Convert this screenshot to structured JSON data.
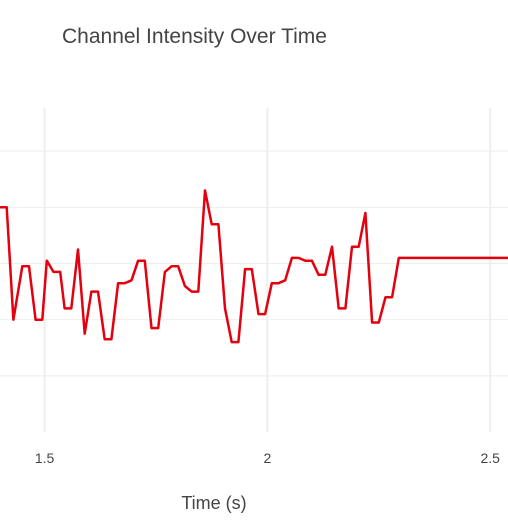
{
  "chart_data": {
    "type": "line",
    "title": "Channel Intensity Over Time",
    "xlabel": "Time (s)",
    "ylabel": "",
    "xlim": [
      1.4,
      2.54
    ],
    "ylim": [
      -3,
      3
    ],
    "x_ticks": [
      {
        "value": 1.5,
        "label": "1.5"
      },
      {
        "value": 2,
        "label": "2"
      },
      {
        "value": 2.5,
        "label": "2.5"
      }
    ],
    "y_gridlines": [
      -2,
      -1,
      0,
      1,
      2
    ],
    "x_gridlines": [
      1.5,
      2,
      2.5
    ],
    "grid": true,
    "legend": "none",
    "series": [
      {
        "color": "#e3000f",
        "x": [
          1.4,
          1.415,
          1.43,
          1.45,
          1.465,
          1.48,
          1.495,
          1.505,
          1.52,
          1.535,
          1.545,
          1.56,
          1.575,
          1.59,
          1.605,
          1.62,
          1.635,
          1.65,
          1.665,
          1.68,
          1.695,
          1.71,
          1.725,
          1.74,
          1.755,
          1.77,
          1.785,
          1.8,
          1.815,
          1.83,
          1.845,
          1.86,
          1.875,
          1.89,
          1.905,
          1.92,
          1.935,
          1.95,
          1.965,
          1.98,
          1.995,
          2.01,
          2.025,
          2.04,
          2.055,
          2.07,
          2.085,
          2.1,
          2.115,
          2.13,
          2.145,
          2.16,
          2.175,
          2.19,
          2.205,
          2.22,
          2.235,
          2.25,
          2.265,
          2.28,
          2.295,
          2.31,
          2.325,
          2.34,
          2.355,
          2.37,
          2.385,
          2.4,
          2.415,
          2.43,
          2.445,
          2.46,
          2.475,
          2.49,
          2.505,
          2.52,
          2.54
        ],
        "y": [
          1.0,
          1.0,
          -1.0,
          -0.05,
          -0.05,
          -1.0,
          -1.0,
          0.05,
          -0.15,
          -0.15,
          -0.8,
          -0.8,
          0.25,
          -1.25,
          -0.5,
          -0.5,
          -1.35,
          -1.35,
          -0.35,
          -0.35,
          -0.3,
          0.05,
          0.05,
          -1.15,
          -1.15,
          -0.15,
          -0.05,
          -0.05,
          -0.4,
          -0.5,
          -0.5,
          1.3,
          0.7,
          0.7,
          -0.8,
          -1.4,
          -1.4,
          -0.1,
          -0.1,
          -0.9,
          -0.9,
          -0.35,
          -0.35,
          -0.3,
          0.1,
          0.1,
          0.05,
          0.05,
          -0.2,
          -0.2,
          0.3,
          -0.8,
          -0.8,
          0.3,
          0.3,
          0.9,
          -1.05,
          -1.05,
          -0.6,
          -0.6,
          0.1,
          0.1,
          0.1,
          0.1,
          0.1,
          0.1,
          0.1,
          0.1,
          0.1,
          0.1,
          0.1,
          0.1,
          0.1,
          0.1,
          0.1,
          0.1,
          0.1
        ]
      }
    ]
  }
}
